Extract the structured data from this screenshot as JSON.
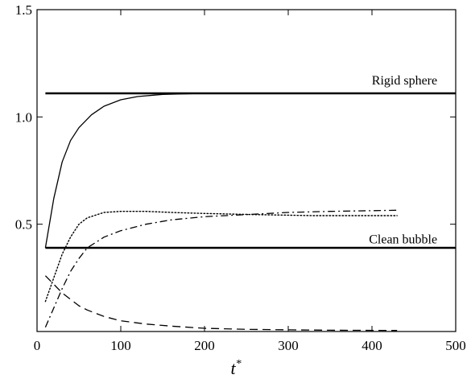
{
  "chart_data": {
    "type": "line",
    "title": "",
    "xlabel": "t",
    "xlabel_superscript": "*",
    "ylabel": "",
    "xlim": [
      0,
      500
    ],
    "ylim": [
      0,
      1.5
    ],
    "x_ticks": [
      0,
      100,
      200,
      300,
      400,
      500
    ],
    "x_tick_labels": [
      "0",
      "100",
      "200",
      "300",
      "400",
      "500"
    ],
    "y_ticks": [
      0.5,
      1.0,
      1.5
    ],
    "y_tick_labels": [
      "0.5",
      "1.0",
      "1.5"
    ],
    "grid": false,
    "legend": "none",
    "annotations": [
      {
        "text": "Rigid sphere",
        "x": 478,
        "y": 1.17
      },
      {
        "text": "Clean bubble",
        "x": 478,
        "y": 0.43
      }
    ],
    "series": [
      {
        "style": "solid-thick",
        "x": [
          10,
          500
        ],
        "y": [
          1.11,
          1.11
        ]
      },
      {
        "style": "solid-thick",
        "x": [
          10,
          500
        ],
        "y": [
          0.39,
          0.39
        ]
      },
      {
        "style": "solid",
        "x": [
          10,
          20,
          30,
          40,
          50,
          65,
          80,
          100,
          120,
          150,
          200,
          260
        ],
        "y": [
          0.39,
          0.62,
          0.79,
          0.89,
          0.95,
          1.01,
          1.05,
          1.08,
          1.095,
          1.105,
          1.11,
          1.11
        ]
      },
      {
        "style": "dotted",
        "x": [
          10,
          20,
          30,
          40,
          50,
          60,
          80,
          100,
          130,
          160,
          200,
          260,
          330,
          430
        ],
        "y": [
          0.14,
          0.25,
          0.36,
          0.44,
          0.5,
          0.53,
          0.555,
          0.56,
          0.56,
          0.555,
          0.55,
          0.545,
          0.54,
          0.54
        ]
      },
      {
        "style": "dash-dot",
        "x": [
          10,
          20,
          30,
          40,
          50,
          60,
          80,
          100,
          130,
          160,
          200,
          250,
          300,
          350,
          430
        ],
        "y": [
          0.02,
          0.11,
          0.2,
          0.28,
          0.34,
          0.39,
          0.44,
          0.47,
          0.5,
          0.52,
          0.535,
          0.545,
          0.555,
          0.56,
          0.565
        ]
      },
      {
        "style": "dashed",
        "x": [
          10,
          20,
          30,
          40,
          50,
          60,
          80,
          100,
          130,
          160,
          200,
          250,
          300,
          350,
          430
        ],
        "y": [
          0.26,
          0.22,
          0.18,
          0.15,
          0.12,
          0.1,
          0.07,
          0.05,
          0.035,
          0.025,
          0.015,
          0.01,
          0.008,
          0.006,
          0.005
        ]
      }
    ]
  }
}
